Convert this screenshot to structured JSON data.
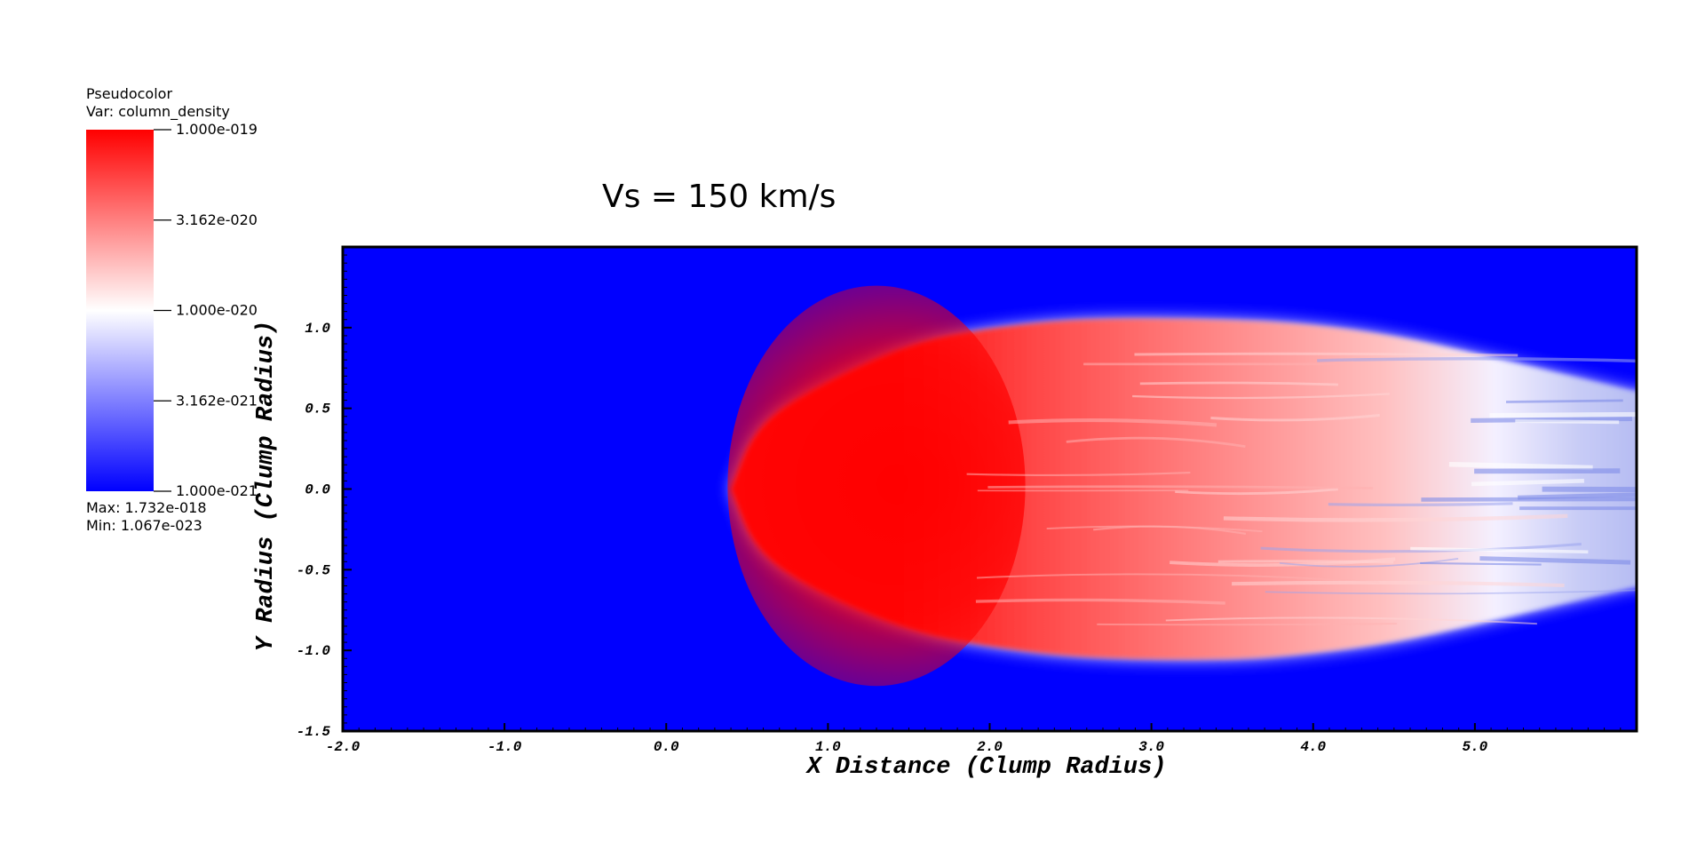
{
  "chart_data": {
    "type": "heatmap",
    "title": "Vs = 150 km/s",
    "xlabel": "X Distance (Clump Radius)",
    "ylabel": "Y Radius (Clump Radius)",
    "xlim": [
      -2.0,
      6.0
    ],
    "ylim": [
      -1.5,
      1.5
    ],
    "x_ticks": [
      -2.0,
      -1.0,
      0.0,
      1.0,
      2.0,
      3.0,
      4.0,
      5.0
    ],
    "x_tick_labels": [
      "-2.0",
      "-1.0",
      "0.0",
      "1.0",
      "2.0",
      "3.0",
      "4.0",
      "5.0"
    ],
    "y_ticks": [
      -1.5,
      -1.0,
      -0.5,
      0.0,
      0.5,
      1.0
    ],
    "y_tick_labels": [
      "-1.5",
      "-1.0",
      "-0.5",
      "0.0",
      "0.5",
      "1.0"
    ],
    "variable": "column_density",
    "colormap": {
      "scale": "log",
      "colors": [
        "#0000ff",
        "#ffffff",
        "#ff0000"
      ],
      "min_value": 1e-21,
      "max_value": 1e-19
    },
    "legend": {
      "title": "Pseudocolor",
      "var_label": "Var: column_density",
      "tick_labels": [
        "1.000e-019",
        "3.162e-020",
        "1.000e-020",
        "3.162e-021",
        "1.000e-021"
      ],
      "tick_values": [
        1e-19,
        3.162e-20,
        1e-20,
        3.162e-21,
        1e-21
      ],
      "max_label": "Max:  1.732e-018",
      "min_label": "Min:  1.067e-023",
      "placement": "top-left"
    },
    "clump": {
      "leading_edge_x": 0.4,
      "dense_core_x": [
        0.9,
        1.7
      ],
      "upper_boundary": [
        [
          0.4,
          0.0
        ],
        [
          0.55,
          0.38
        ],
        [
          0.9,
          0.62
        ],
        [
          1.5,
          0.9
        ],
        [
          2.0,
          1.0
        ],
        [
          2.6,
          1.06
        ],
        [
          3.5,
          1.05
        ],
        [
          4.0,
          1.02
        ],
        [
          4.5,
          0.95
        ],
        [
          5.0,
          0.84
        ],
        [
          5.5,
          0.72
        ],
        [
          6.0,
          0.6
        ]
      ],
      "lower_boundary": [
        [
          0.4,
          0.0
        ],
        [
          0.55,
          -0.38
        ],
        [
          0.9,
          -0.62
        ],
        [
          1.5,
          -0.88
        ],
        [
          2.0,
          -0.98
        ],
        [
          2.6,
          -1.05
        ],
        [
          3.5,
          -1.06
        ],
        [
          4.0,
          -1.02
        ],
        [
          4.5,
          -0.95
        ],
        [
          5.0,
          -0.84
        ],
        [
          5.5,
          -0.72
        ],
        [
          6.0,
          -0.6
        ]
      ]
    }
  }
}
